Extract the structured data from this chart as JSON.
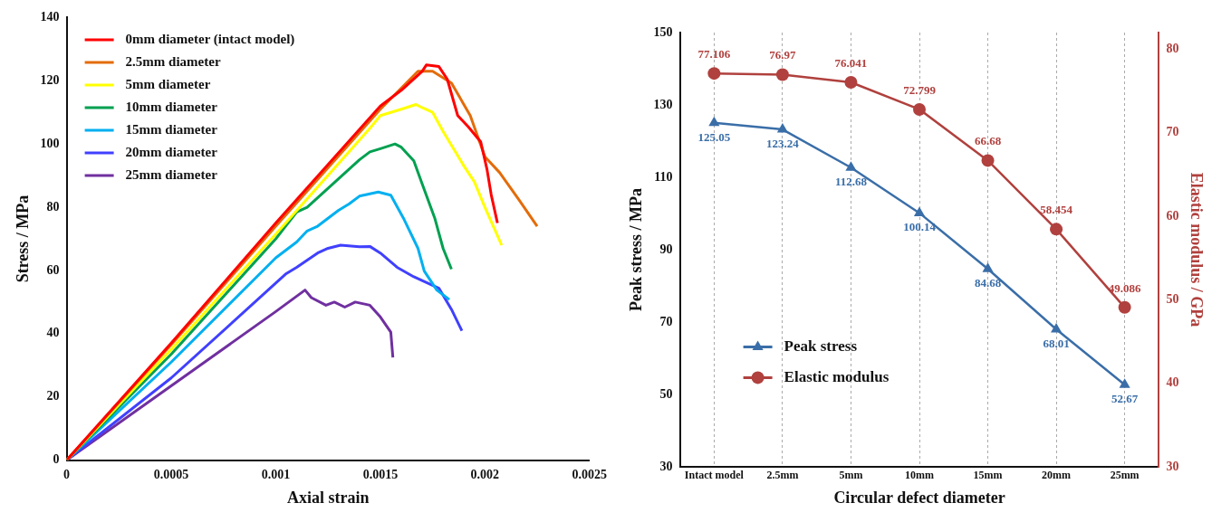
{
  "chart_data": [
    {
      "type": "line",
      "xlabel": "Axial strain",
      "ylabel": "Stress / MPa",
      "xlim": [
        0,
        0.0025
      ],
      "xticks": [
        0,
        0.0005,
        0.001,
        0.0015,
        0.002,
        0.0025
      ],
      "ylim": [
        0,
        140
      ],
      "yticks": [
        0,
        20,
        40,
        60,
        80,
        100,
        120,
        140
      ],
      "legend": "top left",
      "marker": "none",
      "series": [
        {
          "name": "0mm diameter (intact model)",
          "color": "#ff0000",
          "x": [
            0,
            0.0005,
            0.001,
            0.0015,
            0.0016,
            0.0017,
            0.00172,
            0.00178,
            0.00182,
            0.00187,
            0.00192,
            0.00198,
            0.00201,
            0.00203,
            0.00206
          ],
          "values": [
            0,
            37,
            75,
            112,
            117,
            123,
            125,
            124.5,
            120.5,
            109,
            105.5,
            100.7,
            92,
            84,
            75
          ]
        },
        {
          "name": "2.5mm diameter",
          "color": "#e36c0a",
          "x": [
            0,
            0.0005,
            0.001,
            0.0015,
            0.00168,
            0.00175,
            0.00184,
            0.00193,
            0.002,
            0.00207,
            0.00216,
            0.00225
          ],
          "values": [
            0,
            36.5,
            74,
            111,
            123,
            123,
            119.3,
            109,
            96,
            91,
            82.6,
            74
          ]
        },
        {
          "name": "5mm diameter",
          "color": "#ffff00",
          "x": [
            0,
            0.0005,
            0.001,
            0.00145,
            0.0015,
            0.0016,
            0.00167,
            0.0017,
            0.00175,
            0.0018,
            0.0019,
            0.00195,
            0.002,
            0.00208
          ],
          "values": [
            0,
            35,
            71.5,
            105,
            109,
            111,
            112.5,
            111.5,
            110,
            104,
            93,
            88,
            80,
            68
          ]
        },
        {
          "name": "10mm diameter",
          "color": "#00a050",
          "x": [
            0,
            0.0005,
            0.001,
            0.0011,
            0.00115,
            0.0013,
            0.0014,
            0.00145,
            0.0015,
            0.00157,
            0.0016,
            0.00166,
            0.0017,
            0.00176,
            0.0018,
            0.00184
          ],
          "values": [
            0,
            33.5,
            70,
            78.5,
            80,
            89,
            95,
            97.5,
            98.5,
            100,
            99,
            94.7,
            87.4,
            76.6,
            67,
            60.4
          ]
        },
        {
          "name": "15mm diameter",
          "color": "#00b0f0",
          "x": [
            0,
            0.0005,
            0.001,
            0.0011,
            0.00115,
            0.0012,
            0.0013,
            0.00135,
            0.0014,
            0.00149,
            0.00155,
            0.00161,
            0.00168,
            0.00171,
            0.00177,
            0.00183
          ],
          "values": [
            0,
            31,
            64,
            69,
            72.5,
            74,
            79,
            81,
            83.5,
            84.8,
            83.8,
            76.6,
            67,
            59.8,
            53.8,
            50.8
          ]
        },
        {
          "name": "20mm diameter",
          "color": "#4040ff",
          "x": [
            0,
            0.0005,
            0.001,
            0.00105,
            0.0011,
            0.0012,
            0.00125,
            0.00131,
            0.0014,
            0.00145,
            0.0015,
            0.00158,
            0.00166,
            0.00178,
            0.00184,
            0.00189
          ],
          "values": [
            0,
            26,
            56,
            59,
            61,
            65.5,
            67,
            68,
            67.5,
            67.6,
            65.5,
            61,
            58,
            54.4,
            47.7,
            40.9
          ]
        },
        {
          "name": "25mm diameter",
          "color": "#7030a0",
          "x": [
            0,
            0.0005,
            0.001,
            0.00114,
            0.00117,
            0.00124,
            0.00128,
            0.00133,
            0.00138,
            0.00145,
            0.0015,
            0.00155,
            0.00156
          ],
          "values": [
            0,
            23.5,
            47,
            53.8,
            51.4,
            49,
            50,
            48.4,
            50,
            49,
            45.3,
            40.5,
            32.5
          ]
        }
      ]
    },
    {
      "type": "line",
      "xlabel": "Circular defect diameter",
      "ylabel": "Peak stress / MPa",
      "y2label": "Elastic modulus / GPa",
      "categories": [
        "Intact model",
        "2.5mm",
        "5mm",
        "10mm",
        "15mm",
        "20mm",
        "25mm"
      ],
      "ylim": [
        30,
        150
      ],
      "yticks": [
        30,
        50,
        70,
        90,
        110,
        130,
        150
      ],
      "y2lim": [
        30,
        82
      ],
      "y2ticks": [
        30,
        40,
        50,
        60,
        70,
        80
      ],
      "grid": "x",
      "legend": "bottom left",
      "data_labels": true,
      "series": [
        {
          "name": "Peak stress",
          "color": "#3a6ea8",
          "marker": "triangle",
          "values": [
            125.05,
            123.24,
            112.68,
            100.14,
            84.68,
            68.01,
            52.67
          ]
        },
        {
          "name": "Elastic modulus",
          "color": "#b0413e",
          "marker": "circle",
          "axis": "y2",
          "values": [
            77.106,
            76.97,
            76.041,
            72.799,
            66.68,
            58.454,
            49.086
          ]
        }
      ]
    }
  ]
}
